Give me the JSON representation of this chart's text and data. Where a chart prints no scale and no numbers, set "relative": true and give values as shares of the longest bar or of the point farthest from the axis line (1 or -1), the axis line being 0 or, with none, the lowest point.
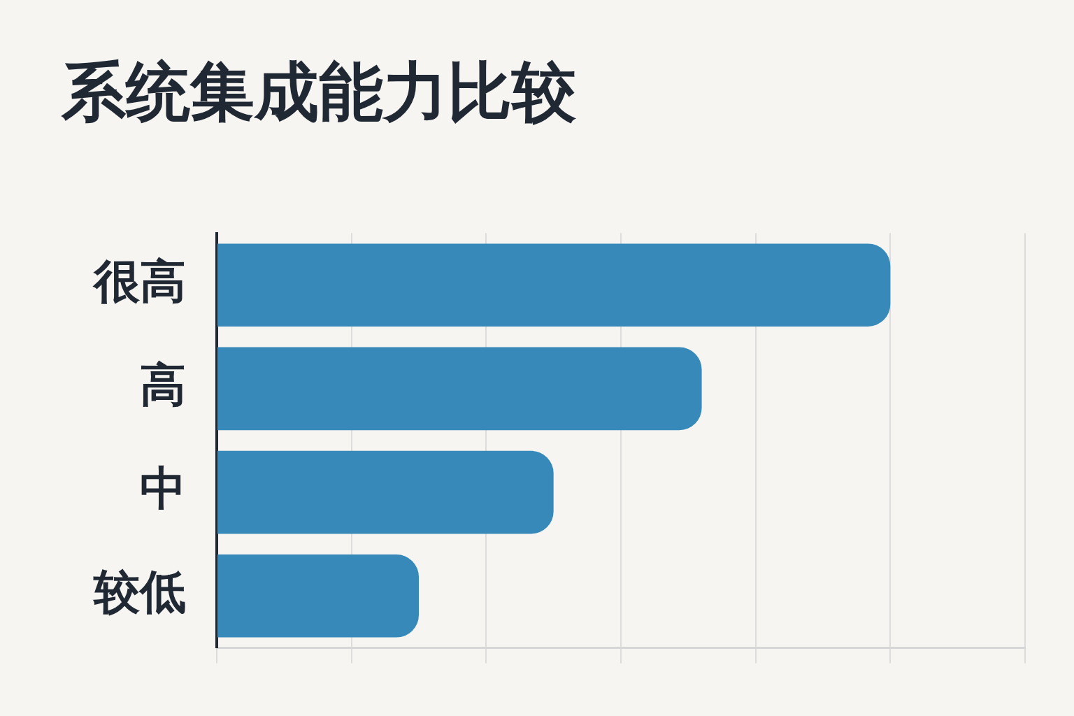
{
  "chart_data": {
    "type": "bar",
    "title": "系统集成能力比较",
    "orientation": "horizontal",
    "relative": true,
    "categories": [
      "很高",
      "高",
      "中",
      "较低"
    ],
    "values": [
      1,
      0.72,
      0.5,
      0.3
    ],
    "color": "#3689b9",
    "grid": "x"
  }
}
